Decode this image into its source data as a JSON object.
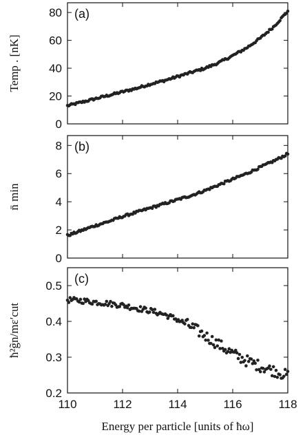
{
  "chart_data": [
    {
      "type": "scatter",
      "panel_label": "(a)",
      "ylabel": "Temp . [nK]",
      "xlim": [
        110,
        118
      ],
      "ylim": [
        0,
        87
      ],
      "yticks": [
        "0",
        "20",
        "40",
        "60",
        "80"
      ],
      "ytick_values": [
        0,
        20,
        40,
        60,
        80
      ],
      "x": [
        110.0,
        110.5,
        111.0,
        111.5,
        112.0,
        112.5,
        113.0,
        113.5,
        114.0,
        114.5,
        115.0,
        115.5,
        116.0,
        116.5,
        117.0,
        117.5,
        118.0
      ],
      "y": [
        13,
        15.5,
        18,
        20.5,
        23,
        25.5,
        28.5,
        31,
        34,
        37,
        40,
        44,
        49,
        54.5,
        61.5,
        70,
        81
      ]
    },
    {
      "type": "scatter",
      "panel_label": "(b)",
      "ylabel": "n̄ min",
      "xlim": [
        110,
        118
      ],
      "ylim": [
        0,
        8.7
      ],
      "yticks": [
        "0",
        "2",
        "4",
        "6",
        "8"
      ],
      "ytick_values": [
        0,
        2,
        4,
        6,
        8
      ],
      "x": [
        110.0,
        110.5,
        111.0,
        111.5,
        112.0,
        112.5,
        113.0,
        113.5,
        114.0,
        114.5,
        115.0,
        115.5,
        116.0,
        116.5,
        117.0,
        117.5,
        118.0
      ],
      "y": [
        1.6,
        1.95,
        2.3,
        2.6,
        2.95,
        3.25,
        3.55,
        3.85,
        4.15,
        4.45,
        4.8,
        5.2,
        5.6,
        6.0,
        6.45,
        6.9,
        7.4
      ]
    },
    {
      "type": "scatter",
      "panel_label": "(c)",
      "ylabel": "ħ²g̃n/mε′cut",
      "xlabel": "Energy per particle [units of ħω]",
      "xlim": [
        110,
        118
      ],
      "ylim": [
        0.2,
        0.55
      ],
      "yticks": [
        "0.2",
        "0.3",
        "0.4",
        "0.5"
      ],
      "ytick_values": [
        0.2,
        0.3,
        0.4,
        0.5
      ],
      "xticks": [
        "110",
        "112",
        "114",
        "116",
        "118"
      ],
      "xtick_values": [
        110,
        112,
        114,
        116,
        118
      ],
      "x": [
        110.0,
        110.5,
        111.0,
        111.5,
        112.0,
        112.5,
        113.0,
        113.5,
        114.0,
        114.5,
        115.0,
        115.5,
        116.0,
        116.5,
        117.0,
        117.5,
        118.0
      ],
      "y": [
        0.46,
        0.458,
        0.454,
        0.45,
        0.445,
        0.437,
        0.43,
        0.42,
        0.405,
        0.385,
        0.36,
        0.335,
        0.31,
        0.29,
        0.275,
        0.262,
        0.248
      ]
    }
  ]
}
